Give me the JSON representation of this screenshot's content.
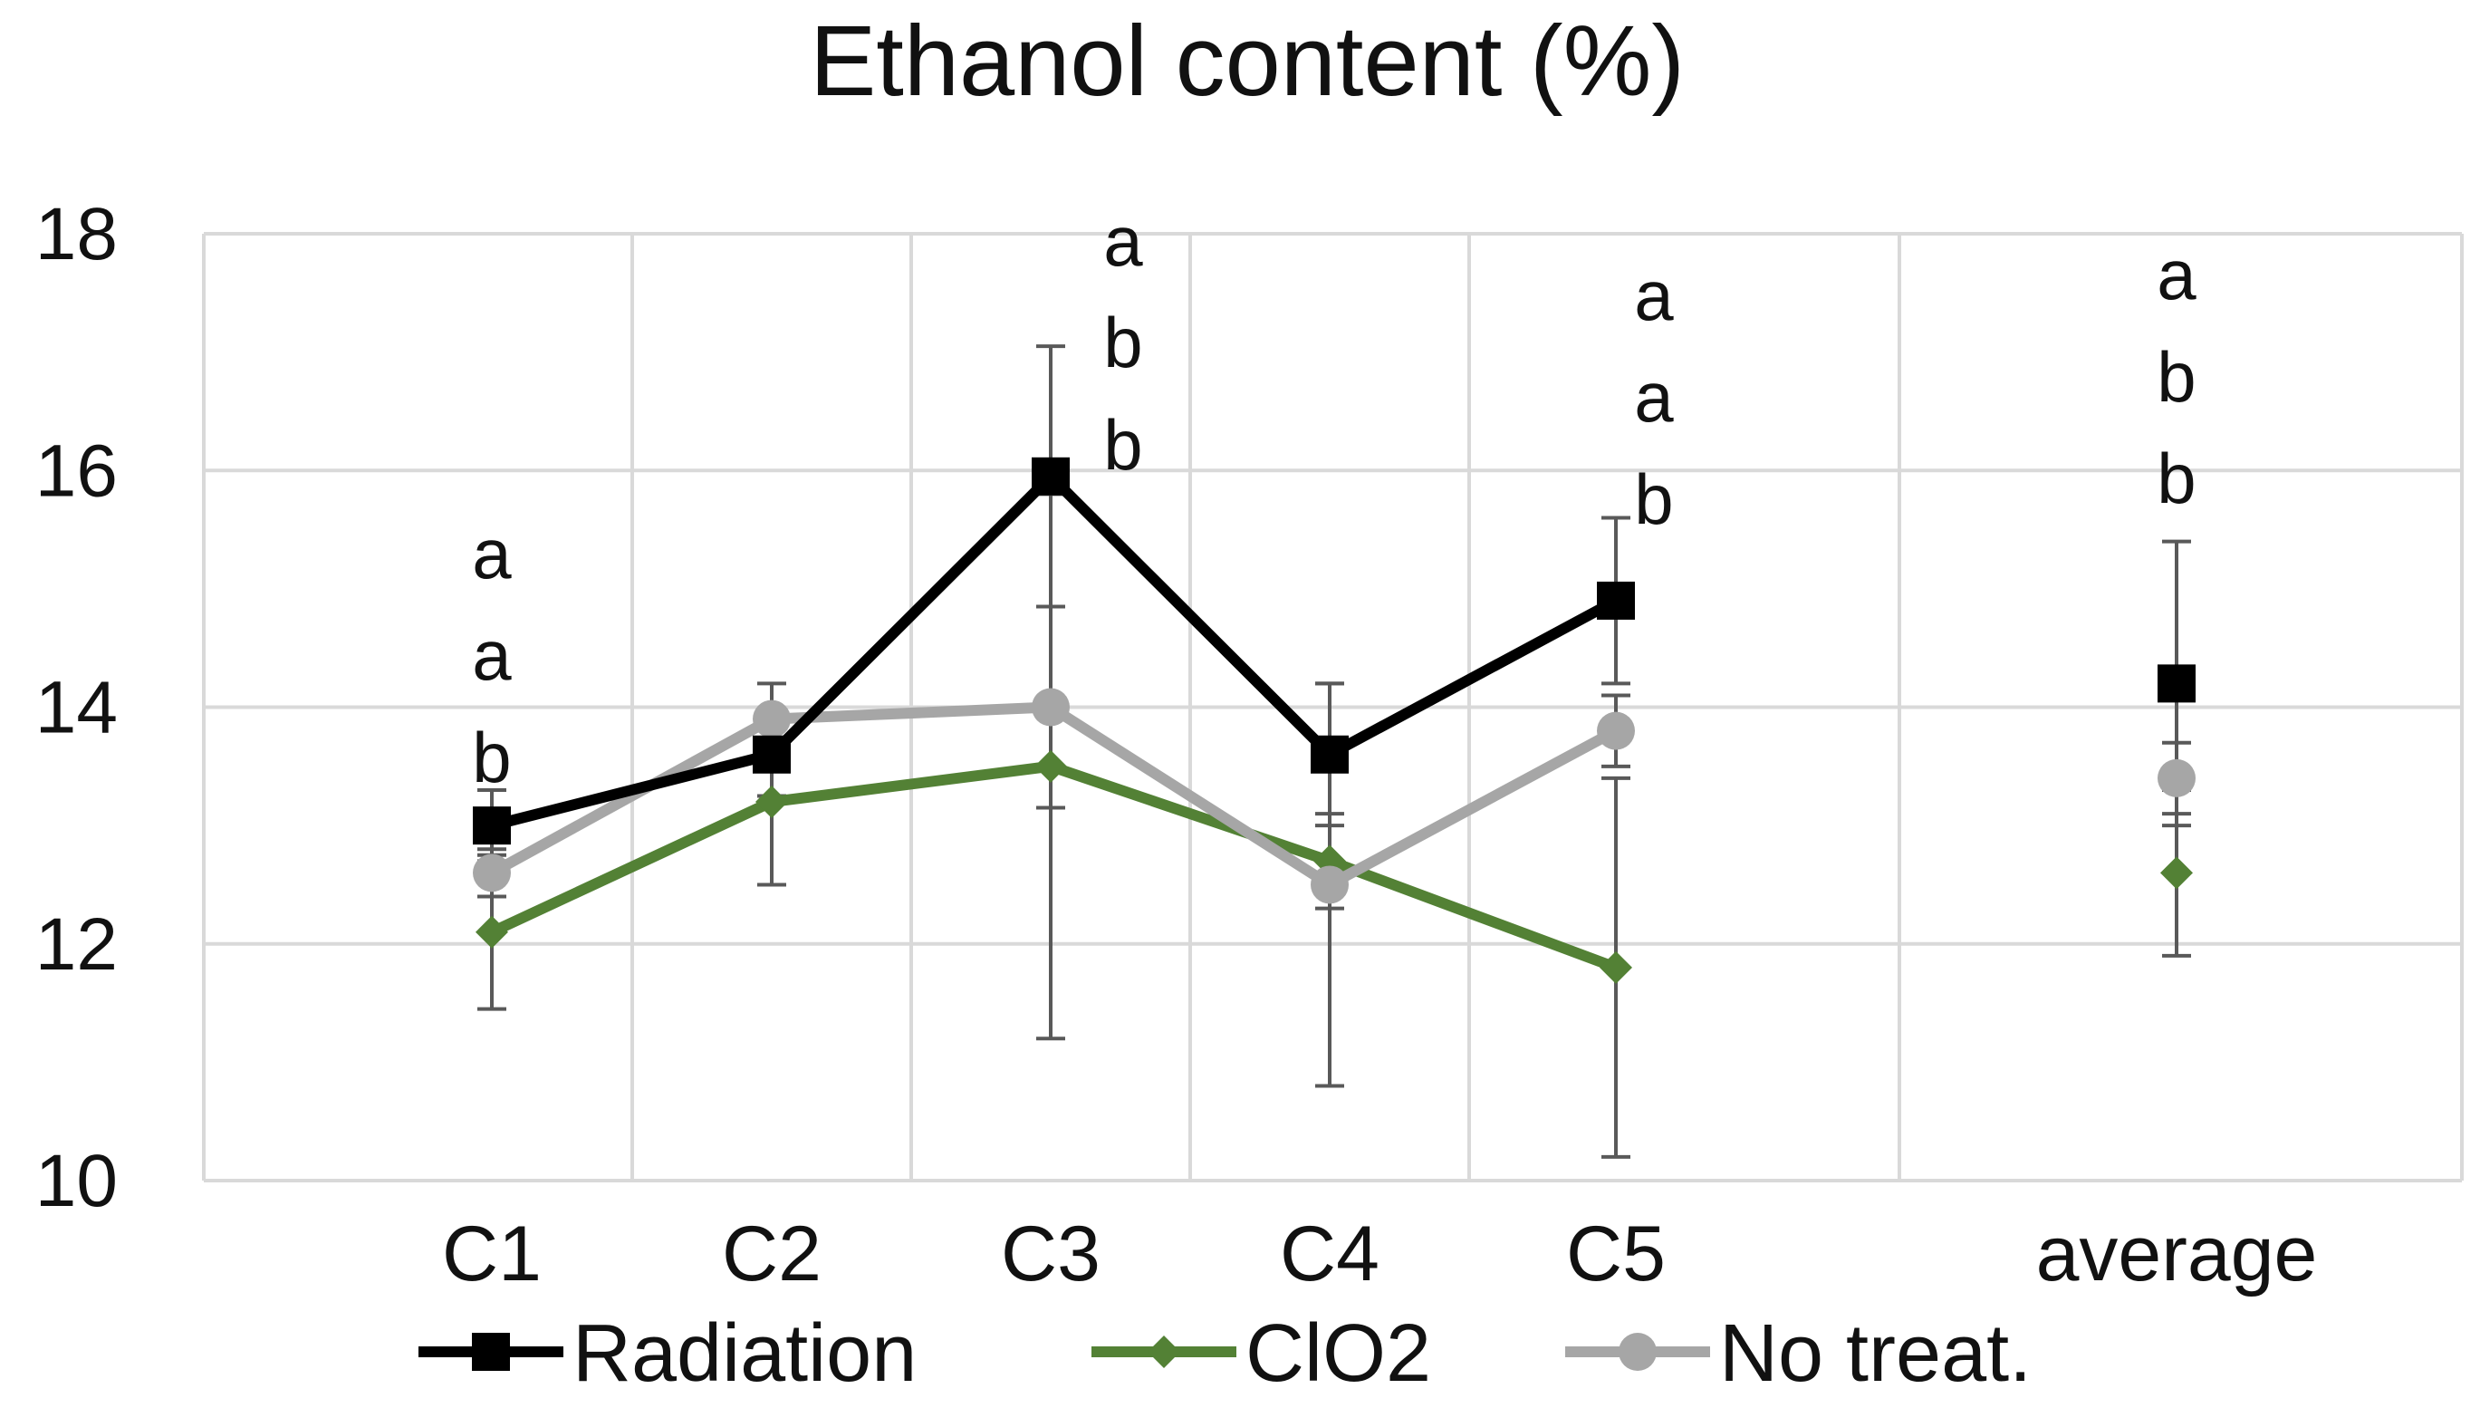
{
  "chart_data": {
    "type": "line",
    "title": "Ethanol content (%)",
    "xlabel": "",
    "ylabel": "",
    "categories": [
      "C1",
      "C2",
      "C3",
      "C4",
      "C5",
      "average"
    ],
    "ylim": [
      10,
      18
    ],
    "yticks": [
      "10",
      "12",
      "14",
      "16",
      "18"
    ],
    "grid": true,
    "legend_position": "bottom",
    "series": [
      {
        "name": "Radiation",
        "color": "#000000",
        "marker": "square",
        "values": [
          13.0,
          13.6,
          15.95,
          13.6,
          14.9,
          14.2
        ],
        "error": [
          0.3,
          0.35,
          1.1,
          0.6,
          0.7,
          1.2
        ]
      },
      {
        "name": "ClO2",
        "color": "#538135",
        "marker": "diamond",
        "values": [
          12.1,
          13.2,
          13.5,
          12.7,
          11.8,
          12.6
        ],
        "error": [
          0.65,
          0.7,
          2.3,
          0.4,
          1.6,
          0.7
        ]
      },
      {
        "name": "No treat.",
        "color": "#A6A6A6",
        "marker": "circle",
        "values": [
          12.6,
          13.9,
          14.0,
          12.5,
          13.8,
          13.4
        ],
        "error": [
          0.2,
          0.3,
          0.85,
          1.7,
          0.3,
          0.3
        ]
      }
    ],
    "annotations": [
      {
        "category": "C1",
        "letters": [
          "a",
          "a",
          "b"
        ]
      },
      {
        "category": "C3",
        "letters": [
          "a",
          "b",
          "b"
        ]
      },
      {
        "category": "C5",
        "letters": [
          "a",
          "a",
          "b"
        ]
      },
      {
        "category": "average",
        "letters": [
          "a",
          "b",
          "b"
        ]
      }
    ]
  }
}
